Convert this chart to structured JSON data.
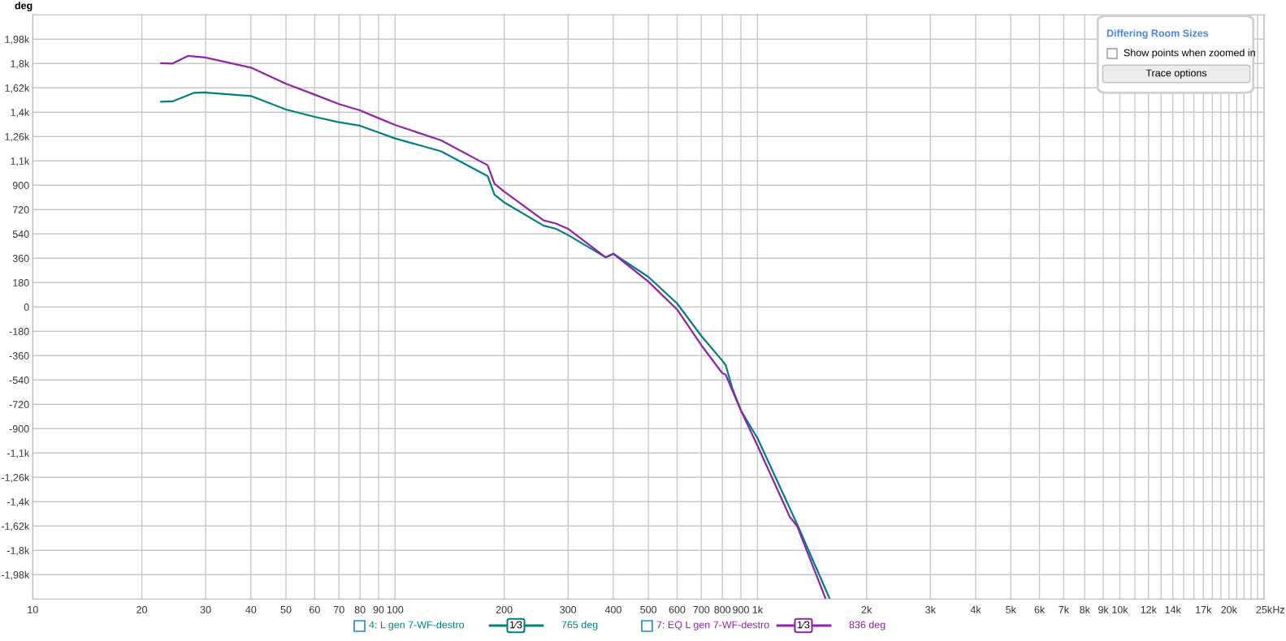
{
  "chart_data": {
    "type": "line",
    "ylabel": "deg",
    "log": "x",
    "grid": true,
    "legend": "bottom",
    "line_style": "solid",
    "marker": "none",
    "xlim": [
      10,
      25000
    ],
    "ylim": [
      -2160,
      2160
    ],
    "xticks": [
      10,
      20,
      30,
      40,
      50,
      60,
      70,
      80,
      90,
      100,
      200,
      300,
      400,
      500,
      600,
      700,
      800,
      900,
      {
        "value": 1000,
        "label": "1k"
      },
      {
        "value": 2000,
        "label": "2k"
      },
      {
        "value": 3000,
        "label": "3k"
      },
      {
        "value": 4000,
        "label": "4k"
      },
      {
        "value": 5000,
        "label": "5k"
      },
      {
        "value": 6000,
        "label": "6k"
      },
      {
        "value": 7000,
        "label": "7k"
      },
      {
        "value": 8000,
        "label": "8k"
      },
      {
        "value": 9000,
        "label": "9k"
      },
      {
        "value": 10000,
        "label": "10k"
      },
      {
        "value": 11000,
        "label": null
      },
      {
        "value": 12000,
        "label": "12k"
      },
      {
        "value": 13000,
        "label": null
      },
      {
        "value": 14000,
        "label": "14k"
      },
      {
        "value": 15000,
        "label": null
      },
      {
        "value": 16000,
        "label": null
      },
      {
        "value": 17000,
        "label": "17k"
      },
      {
        "value": 18000,
        "label": null
      },
      {
        "value": 19000,
        "label": null
      },
      {
        "value": 20000,
        "label": "20k"
      },
      {
        "value": 21000,
        "label": null
      },
      {
        "value": 22000,
        "label": null
      },
      {
        "value": 23000,
        "label": null
      },
      {
        "value": 24000,
        "label": null
      },
      {
        "value": 25000,
        "label": "25k"
      }
    ],
    "xlabel": "Hz",
    "yticks": [
      {
        "value": 1980,
        "label": "1,98k"
      },
      {
        "value": 1800,
        "label": "1,8k"
      },
      {
        "value": 1620,
        "label": "1,62k"
      },
      {
        "value": 1440,
        "label": "1,4k"
      },
      {
        "value": 1260,
        "label": "1,26k"
      },
      {
        "value": 1080,
        "label": "1,1k"
      },
      900,
      720,
      540,
      360,
      180,
      0,
      -180,
      -360,
      -540,
      -720,
      -900,
      {
        "value": -1080,
        "label": "-1,1k"
      },
      {
        "value": -1260,
        "label": "-1,26k"
      },
      {
        "value": -1440,
        "label": "-1,4k"
      },
      {
        "value": -1620,
        "label": "-1,62k"
      },
      {
        "value": -1800,
        "label": "-1,8k"
      },
      {
        "value": -1980,
        "label": "-1,98k"
      }
    ],
    "series": [
      {
        "name": "4: L gen 7-WF-destro",
        "color": "#00807f",
        "x": [
          22.6,
          24.3,
          27.9,
          30,
          40,
          50,
          60,
          70,
          80,
          90,
          100,
          134,
          180,
          188,
          200,
          257,
          278,
          300,
          381,
          400,
          500,
          600,
          700,
          800,
          817,
          853,
          900,
          1000,
          1288,
          1581
        ],
        "values": [
          1518,
          1520,
          1584,
          1586,
          1560,
          1460,
          1406,
          1366,
          1340,
          1290,
          1246,
          1151,
          968,
          830,
          773,
          601,
          578,
          532,
          367,
          394,
          222,
          26,
          -214,
          -398,
          -430,
          -604,
          -766,
          -970,
          -1609,
          -2156
        ]
      },
      {
        "name": "7: EQ L gen 7-WF-destro",
        "color": "#8e24aa",
        "x": [
          22.6,
          24.3,
          26.8,
          30,
          40,
          50,
          60,
          70,
          80,
          90,
          100,
          134,
          180,
          188,
          200,
          257,
          278,
          300,
          381,
          400,
          500,
          600,
          700,
          800,
          817,
          900,
          1000,
          1228,
          1288,
          1541
        ],
        "values": [
          1802,
          1800,
          1856,
          1844,
          1770,
          1650,
          1570,
          1500,
          1454,
          1396,
          1346,
          1232,
          1048,
          911,
          853,
          640,
          617,
          578,
          367,
          394,
          187,
          -19,
          -283,
          -490,
          -501,
          -766,
          -1026,
          -1552,
          -1623,
          -2156
        ]
      }
    ],
    "annotations": [
      "Differing Room Sizes",
      "Show points when zoomed in",
      "Trace options",
      "1⁄3",
      "765 deg",
      "1⁄3",
      "836 deg"
    ]
  }
}
